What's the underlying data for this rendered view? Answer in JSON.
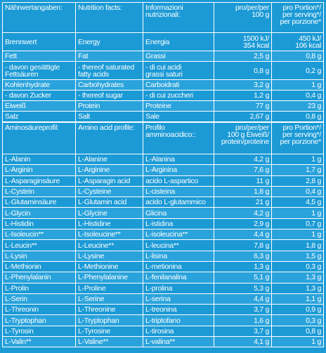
{
  "nutrition": {
    "header": [
      "Nährwertangaben:",
      "Nutrition facts:",
      "Informazioni\nnutrizionali:",
      "pro/per/per\n100 g",
      "pro Portion*/\nper serving*/\nper porzione*"
    ],
    "rows": [
      [
        "Brennwert",
        "Energy",
        "Energia",
        "1500 kJ/\n354 kcal",
        "450 kJ/\n106 kcal"
      ],
      [
        "Fett",
        "Fat",
        "Grassi",
        "2,5 g",
        "0,8 g"
      ],
      [
        "- davon gesättigte\nFettsäuren",
        "- thereof saturated\nfatty acids",
        "- di cui acidi\ngrassi saturi",
        "0,8 g",
        "0,2 g"
      ],
      [
        "Kohlenhydrate",
        "Carbohydrates",
        "Carboidrati",
        "3,2 g",
        "1 g"
      ],
      [
        "- davon Zucker",
        "- thereof sugar",
        "- di cui zuccheri",
        "1,2 g",
        "0,4 g"
      ],
      [
        "Eiweiß",
        "Protein",
        "Proteine",
        "77 g",
        "23 g"
      ],
      [
        "Salz",
        "Salt",
        "Sale",
        "2,67 g",
        "0,8 g"
      ]
    ]
  },
  "amino_acids": {
    "header": [
      "Aminosäureprofil:",
      "Amino acid profile:",
      "Profilo\namminoacidico::",
      "pro/per/per\n100 g Eiweiß/\nprotein/proteine",
      "pro Portion*/\nper serving*/\nper porzione*"
    ],
    "rows": [
      [
        "L-Alanin",
        "L-Alanine",
        "L-Alanina",
        "4,2 g",
        "1 g"
      ],
      [
        "L-Arginin",
        "L-Arginine",
        "L-Arginina",
        "7,6 g",
        "1,7 g"
      ],
      [
        "L-Asparaginsäure",
        "L-Asparagin acid",
        "acido L-aspartico",
        "11 g",
        "2,8 g"
      ],
      [
        "L-Cystein",
        "L-Cysteine",
        "L-cisteina",
        "1,8 g",
        "0,4 g"
      ],
      [
        "L-Glutaminsäure",
        "L-Glutamin acid",
        "acido L-glutammico",
        "21 g",
        "4,5 g"
      ],
      [
        "L-Glycin",
        "L-Glycine",
        "Glicina",
        "4,2 g",
        "1 g"
      ],
      [
        "L-Histidin",
        "L-Histidine",
        "L-istidina",
        "2,9 g",
        "0,7 g"
      ],
      [
        "L-Isoleucin**",
        "L-Isoleucine**",
        "L-isoleucina**",
        "4,4 g",
        "1 g"
      ],
      [
        "L-Leucin**",
        "L-Leucine**",
        "L-leucina**",
        "7,8 g",
        "1,8 g"
      ],
      [
        "L-Lysin",
        "L-Lysine",
        "L-lisina",
        "6,3 g",
        "1,5 g"
      ],
      [
        "L-Methionin",
        "L-Methionine",
        "L-metionina",
        "1,3 g",
        "0,3 g"
      ],
      [
        "L-Phenylalanin",
        "L-Phenylalanine",
        "L-fenilanalina",
        "5,1 g",
        "1,3 g"
      ],
      [
        "L-Prolin",
        "L-Proline",
        "L-prolina",
        "5,3 g",
        "1,3 g"
      ],
      [
        "L-Serin",
        "L-Serine",
        "L-serina",
        "4,4 g",
        "1,1 g"
      ],
      [
        "L-Threonin",
        "L-Threonine",
        "L-treonina",
        "3,7 g",
        "0,9 g"
      ],
      [
        "L-Tryptophan",
        "L-Tryptophan",
        "L-triptofano",
        "1,6 g",
        "0,3 g"
      ],
      [
        "L-Tyrosin",
        "L-Tyrosine",
        "L-tirosina",
        "3,7 g",
        "0,8 g"
      ],
      [
        "L-Valin**",
        "L-Valine**",
        "L-valina**",
        "4,1 g",
        "1 g"
      ]
    ]
  }
}
